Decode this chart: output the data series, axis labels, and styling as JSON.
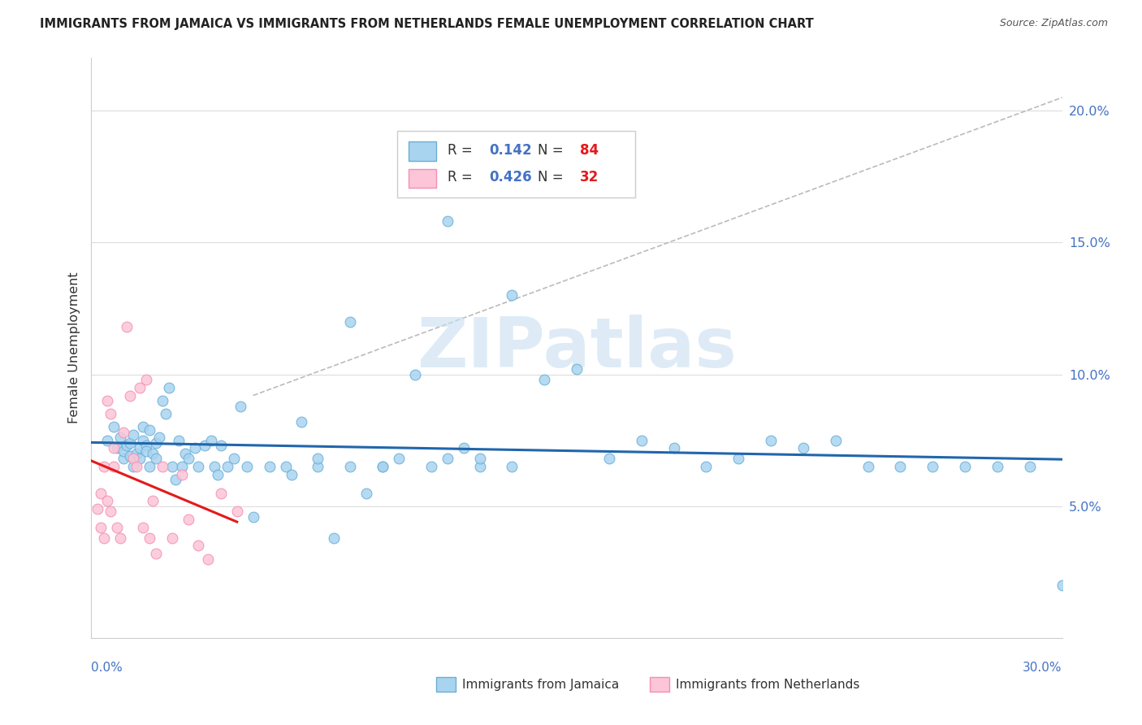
{
  "title": "IMMIGRANTS FROM JAMAICA VS IMMIGRANTS FROM NETHERLANDS FEMALE UNEMPLOYMENT CORRELATION CHART",
  "source": "Source: ZipAtlas.com",
  "ylabel": "Female Unemployment",
  "xlim": [
    0.0,
    0.3
  ],
  "ylim": [
    0.0,
    0.22
  ],
  "yticks": [
    0.05,
    0.1,
    0.15,
    0.2
  ],
  "ytick_labels": [
    "5.0%",
    "10.0%",
    "15.0%",
    "20.0%"
  ],
  "blue_scatter_color": "#a8d4f0",
  "blue_scatter_edge": "#6baed6",
  "pink_scatter_color": "#fcc5d8",
  "pink_scatter_edge": "#f48fb1",
  "blue_line_color": "#2166ac",
  "pink_line_color": "#e31a1c",
  "dashed_line_color": "#bbbbbb",
  "watermark_color": "#c8dff0",
  "watermark_text": "ZIPatlas",
  "legend_r1_val": "0.142",
  "legend_n1_val": "84",
  "legend_r2_val": "0.426",
  "legend_n2_val": "32",
  "label_jamaica": "Immigrants from Jamaica",
  "label_netherlands": "Immigrants from Netherlands",
  "seed": 42,
  "n_jamaica": 84,
  "n_netherlands": 32,
  "jamaica_scatter_x": [
    0.005,
    0.007,
    0.008,
    0.009,
    0.01,
    0.01,
    0.011,
    0.012,
    0.012,
    0.013,
    0.013,
    0.014,
    0.015,
    0.015,
    0.016,
    0.016,
    0.017,
    0.017,
    0.018,
    0.018,
    0.019,
    0.02,
    0.02,
    0.021,
    0.022,
    0.023,
    0.024,
    0.025,
    0.026,
    0.027,
    0.028,
    0.029,
    0.03,
    0.032,
    0.033,
    0.035,
    0.037,
    0.038,
    0.039,
    0.04,
    0.042,
    0.044,
    0.046,
    0.048,
    0.05,
    0.055,
    0.06,
    0.062,
    0.065,
    0.07,
    0.075,
    0.08,
    0.085,
    0.09,
    0.095,
    0.1,
    0.105,
    0.11,
    0.115,
    0.12,
    0.13,
    0.14,
    0.15,
    0.16,
    0.17,
    0.18,
    0.19,
    0.2,
    0.21,
    0.22,
    0.23,
    0.24,
    0.25,
    0.26,
    0.27,
    0.28,
    0.29,
    0.3,
    0.11,
    0.12,
    0.13,
    0.07,
    0.08,
    0.09
  ],
  "jamaica_scatter_y": [
    0.075,
    0.08,
    0.072,
    0.076,
    0.068,
    0.071,
    0.073,
    0.069,
    0.074,
    0.065,
    0.077,
    0.07,
    0.072,
    0.068,
    0.08,
    0.075,
    0.073,
    0.071,
    0.079,
    0.065,
    0.07,
    0.074,
    0.068,
    0.076,
    0.09,
    0.085,
    0.095,
    0.065,
    0.06,
    0.075,
    0.065,
    0.07,
    0.068,
    0.072,
    0.065,
    0.073,
    0.075,
    0.065,
    0.062,
    0.073,
    0.065,
    0.068,
    0.088,
    0.065,
    0.046,
    0.065,
    0.065,
    0.062,
    0.082,
    0.065,
    0.038,
    0.12,
    0.055,
    0.065,
    0.068,
    0.1,
    0.065,
    0.068,
    0.072,
    0.065,
    0.13,
    0.098,
    0.102,
    0.068,
    0.075,
    0.072,
    0.065,
    0.068,
    0.075,
    0.072,
    0.075,
    0.065,
    0.065,
    0.065,
    0.065,
    0.065,
    0.065,
    0.02,
    0.158,
    0.068,
    0.065,
    0.068,
    0.065,
    0.065
  ],
  "netherlands_scatter_x": [
    0.002,
    0.003,
    0.003,
    0.004,
    0.004,
    0.005,
    0.005,
    0.006,
    0.006,
    0.007,
    0.007,
    0.008,
    0.009,
    0.01,
    0.011,
    0.012,
    0.013,
    0.014,
    0.015,
    0.016,
    0.017,
    0.018,
    0.019,
    0.02,
    0.022,
    0.025,
    0.028,
    0.03,
    0.033,
    0.036,
    0.04,
    0.045
  ],
  "netherlands_scatter_y": [
    0.049,
    0.055,
    0.042,
    0.065,
    0.038,
    0.09,
    0.052,
    0.085,
    0.048,
    0.072,
    0.065,
    0.042,
    0.038,
    0.078,
    0.118,
    0.092,
    0.068,
    0.065,
    0.095,
    0.042,
    0.098,
    0.038,
    0.052,
    0.032,
    0.065,
    0.038,
    0.062,
    0.045,
    0.035,
    0.03,
    0.055,
    0.048
  ]
}
